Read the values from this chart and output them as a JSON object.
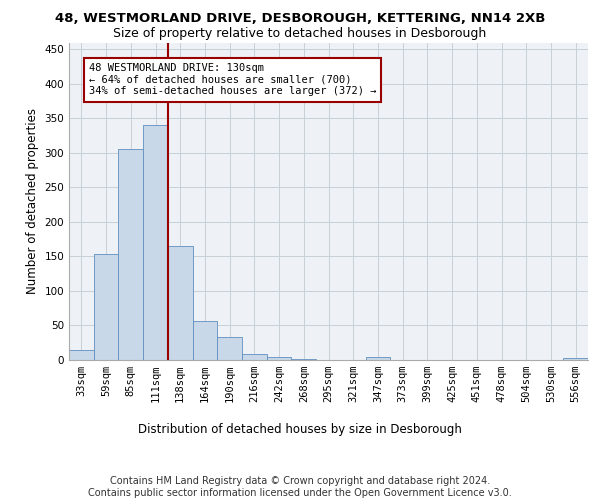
{
  "title1": "48, WESTMORLAND DRIVE, DESBOROUGH, KETTERING, NN14 2XB",
  "title2": "Size of property relative to detached houses in Desborough",
  "xlabel": "Distribution of detached houses by size in Desborough",
  "ylabel": "Number of detached properties",
  "footnote": "Contains HM Land Registry data © Crown copyright and database right 2024.\nContains public sector information licensed under the Open Government Licence v3.0.",
  "bin_labels": [
    "33sqm",
    "59sqm",
    "85sqm",
    "111sqm",
    "138sqm",
    "164sqm",
    "190sqm",
    "216sqm",
    "242sqm",
    "268sqm",
    "295sqm",
    "321sqm",
    "347sqm",
    "373sqm",
    "399sqm",
    "425sqm",
    "451sqm",
    "478sqm",
    "504sqm",
    "530sqm",
    "556sqm"
  ],
  "bar_heights": [
    15,
    153,
    305,
    340,
    165,
    56,
    33,
    9,
    5,
    1,
    0,
    0,
    5,
    0,
    0,
    0,
    0,
    0,
    0,
    0,
    3
  ],
  "bar_color": "#c8d8e8",
  "bar_edge_color": "#6090c0",
  "vline_x": 3.5,
  "vline_color": "#990000",
  "annotation_text": "48 WESTMORLAND DRIVE: 130sqm\n← 64% of detached houses are smaller (700)\n34% of semi-detached houses are larger (372) →",
  "annotation_box_color": "white",
  "annotation_box_edge": "#990000",
  "ylim": [
    0,
    460
  ],
  "yticks": [
    0,
    50,
    100,
    150,
    200,
    250,
    300,
    350,
    400,
    450
  ],
  "grid_color": "#c8d0d8",
  "bg_color": "#eef2f6",
  "title1_fontsize": 9.5,
  "title2_fontsize": 9,
  "axis_label_fontsize": 8.5,
  "tick_fontsize": 7.5,
  "footnote_fontsize": 7,
  "annot_fontsize": 7.5
}
